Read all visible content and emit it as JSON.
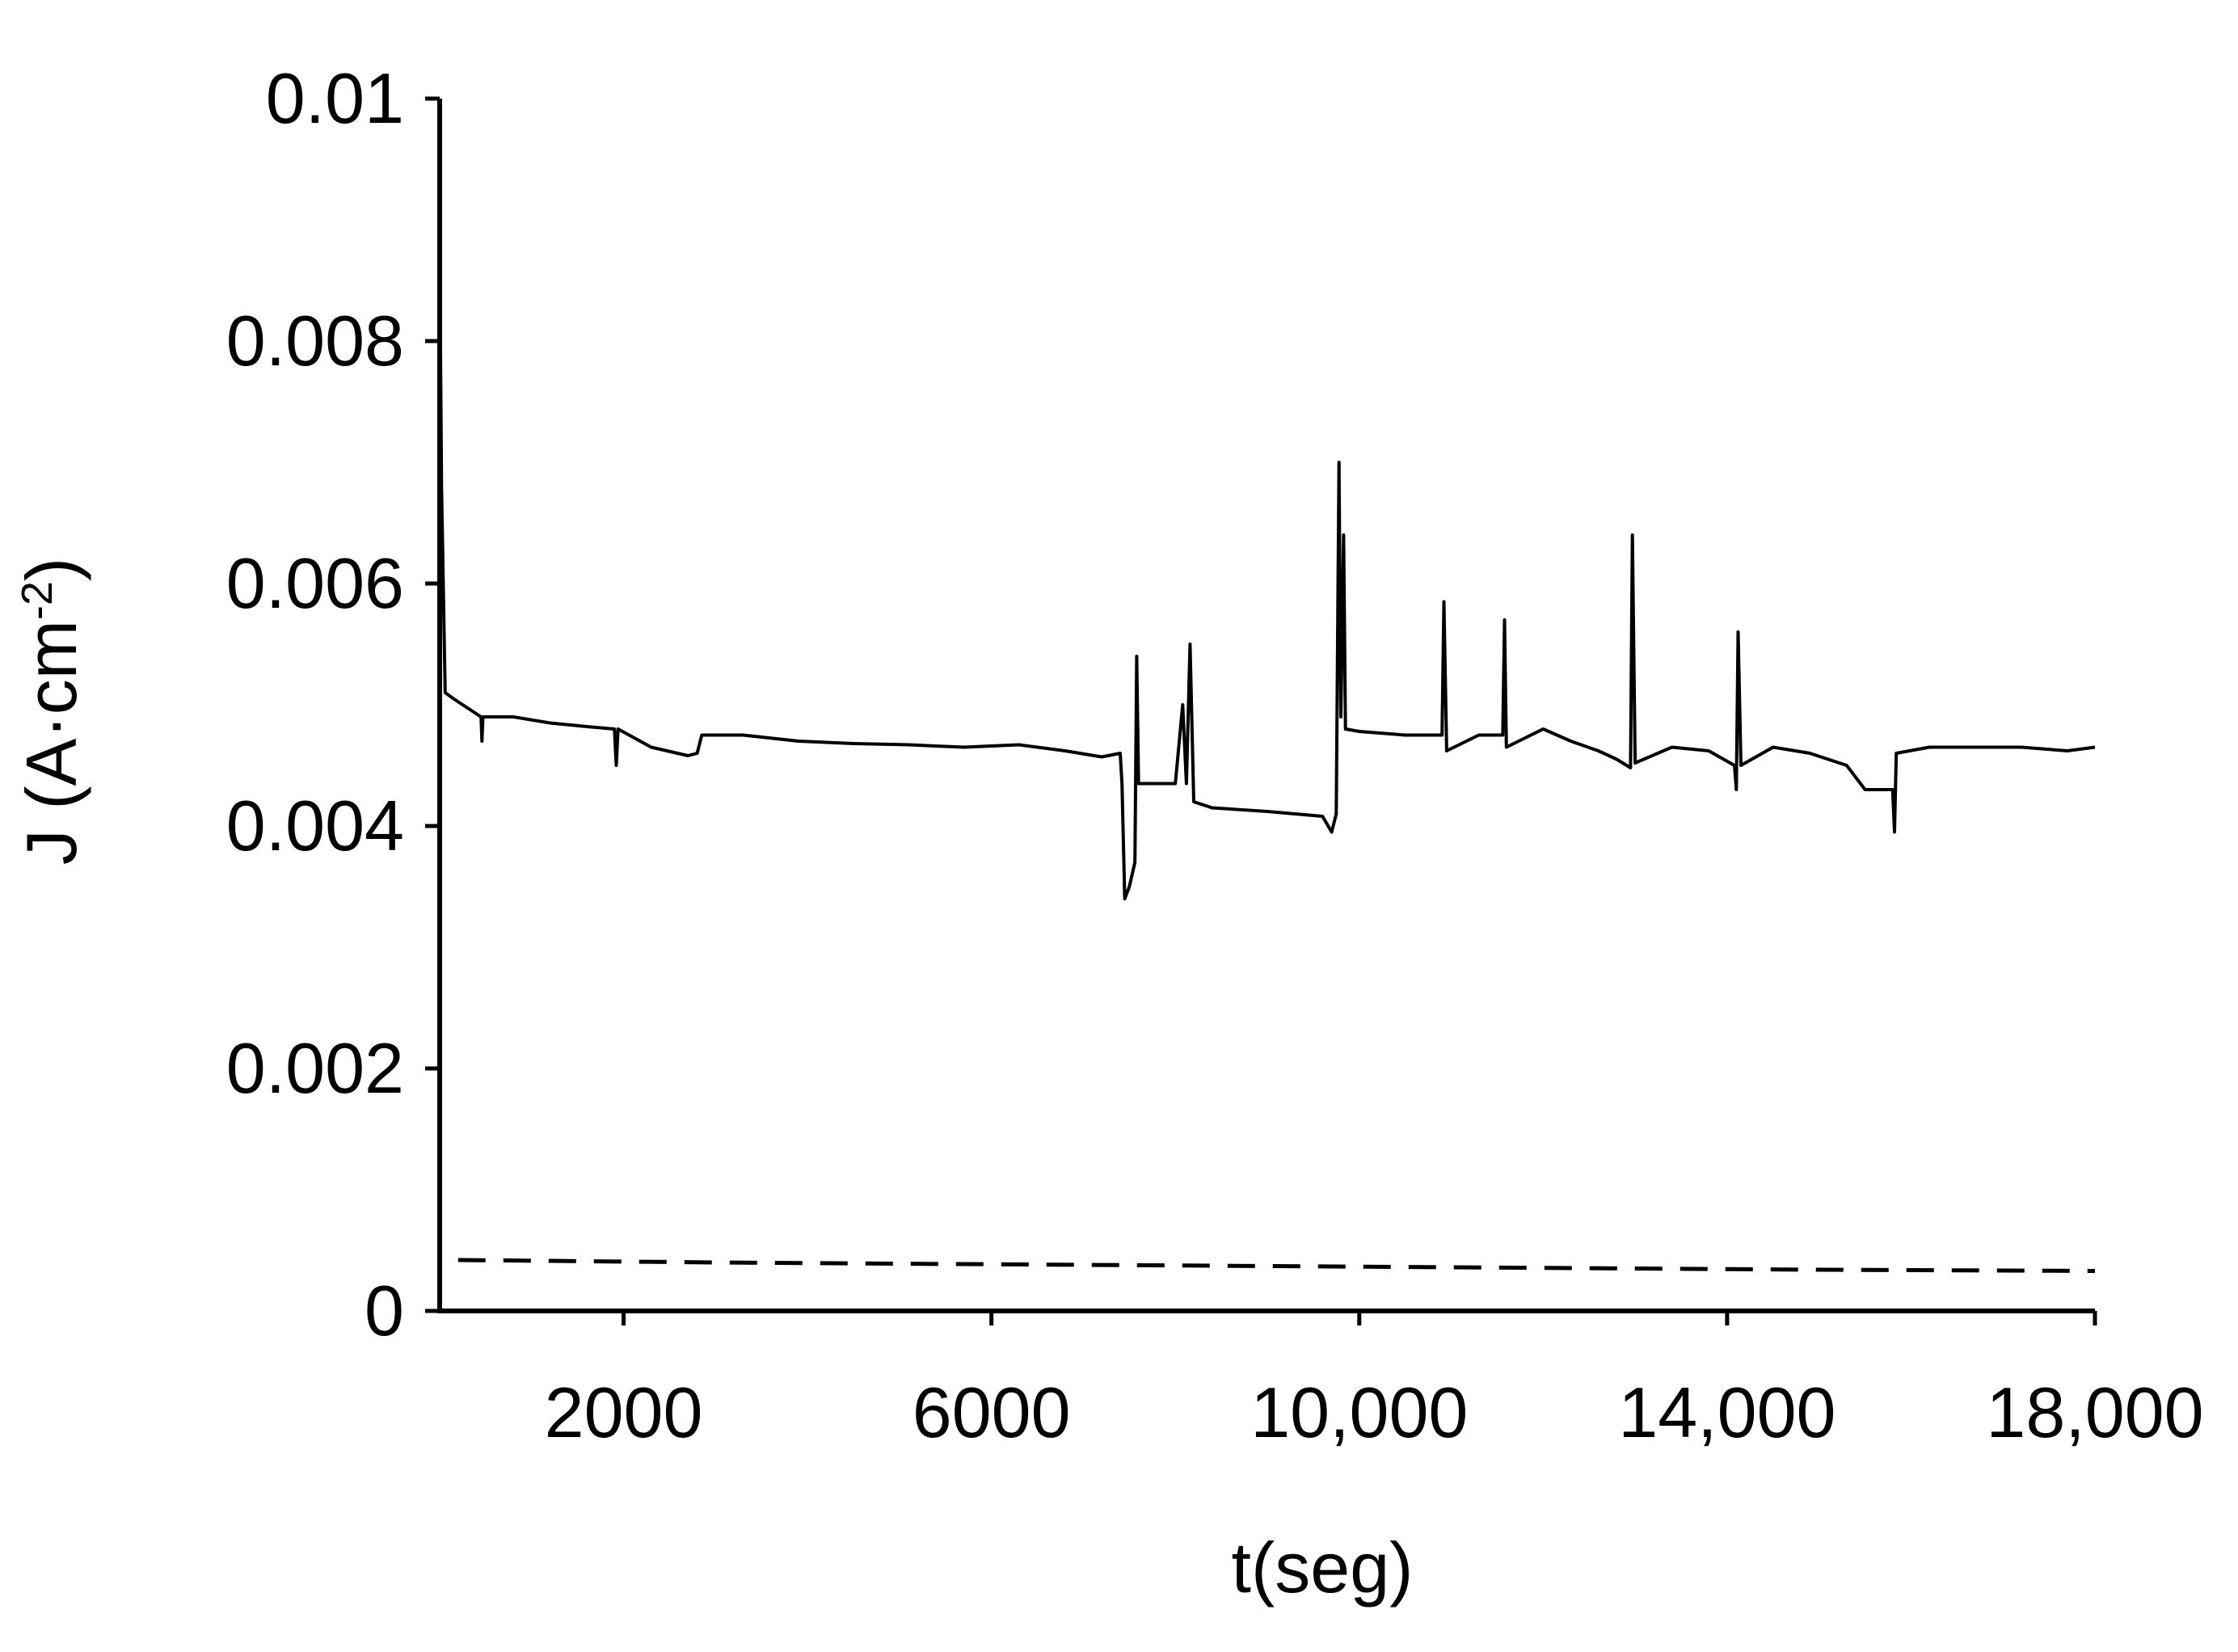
{
  "chart_data": {
    "type": "line",
    "xlabel": "t(seg)",
    "ylabel": {
      "base": "J (A·cm",
      "exponent": "-2",
      "close": ")"
    },
    "xlim": [
      0,
      18000
    ],
    "ylim": [
      0,
      0.01
    ],
    "x_ticks": [
      {
        "value": 2000,
        "label": "2000"
      },
      {
        "value": 6000,
        "label": "6000"
      },
      {
        "value": 10000,
        "label": "10,000"
      },
      {
        "value": 14000,
        "label": "14,000"
      },
      {
        "value": 18000,
        "label": "18,000"
      }
    ],
    "y_ticks": [
      {
        "value": 0,
        "label": "0"
      },
      {
        "value": 0.002,
        "label": "0.002"
      },
      {
        "value": 0.004,
        "label": "0.004"
      },
      {
        "value": 0.006,
        "label": "0.006"
      },
      {
        "value": 0.008,
        "label": "0.008"
      },
      {
        "value": 0.01,
        "label": "0.01"
      }
    ],
    "grid": false,
    "series": [
      {
        "style": "solid",
        "color": "#000000",
        "points": [
          [
            0,
            0.0088
          ],
          [
            20,
            0.0068
          ],
          [
            60,
            0.0051
          ],
          [
            150,
            0.00505
          ],
          [
            450,
            0.0049
          ],
          [
            460,
            0.0047
          ],
          [
            470,
            0.0049
          ],
          [
            800,
            0.0049
          ],
          [
            1200,
            0.00485
          ],
          [
            1600,
            0.00482
          ],
          [
            1900,
            0.0048
          ],
          [
            1920,
            0.0045
          ],
          [
            1940,
            0.0048
          ],
          [
            2300,
            0.00465
          ],
          [
            2700,
            0.00458
          ],
          [
            2800,
            0.0046
          ],
          [
            2850,
            0.00475
          ],
          [
            3300,
            0.00475
          ],
          [
            3900,
            0.0047
          ],
          [
            4500,
            0.00468
          ],
          [
            5100,
            0.00467
          ],
          [
            5700,
            0.00465
          ],
          [
            6300,
            0.00467
          ],
          [
            6800,
            0.00462
          ],
          [
            7200,
            0.00457
          ],
          [
            7400,
            0.0046
          ],
          [
            7420,
            0.00435
          ],
          [
            7450,
            0.0034
          ],
          [
            7500,
            0.0035
          ],
          [
            7560,
            0.0037
          ],
          [
            7580,
            0.0054
          ],
          [
            7600,
            0.00435
          ],
          [
            8000,
            0.00435
          ],
          [
            8080,
            0.005
          ],
          [
            8120,
            0.00435
          ],
          [
            8160,
            0.0055
          ],
          [
            8200,
            0.0042
          ],
          [
            8400,
            0.00415
          ],
          [
            9000,
            0.00412
          ],
          [
            9600,
            0.00408
          ],
          [
            9700,
            0.00395
          ],
          [
            9750,
            0.0041
          ],
          [
            9780,
            0.007
          ],
          [
            9800,
            0.0049
          ],
          [
            9830,
            0.0064
          ],
          [
            9850,
            0.0048
          ],
          [
            10000,
            0.00478
          ],
          [
            10500,
            0.00475
          ],
          [
            10900,
            0.00475
          ],
          [
            10920,
            0.00585
          ],
          [
            10950,
            0.00462
          ],
          [
            11300,
            0.00475
          ],
          [
            11560,
            0.00475
          ],
          [
            11580,
            0.0057
          ],
          [
            11600,
            0.00465
          ],
          [
            12000,
            0.0048
          ],
          [
            12300,
            0.0047
          ],
          [
            12600,
            0.00462
          ],
          [
            12800,
            0.00455
          ],
          [
            12950,
            0.00448
          ],
          [
            12970,
            0.0064
          ],
          [
            13000,
            0.00452
          ],
          [
            13400,
            0.00465
          ],
          [
            13800,
            0.00462
          ],
          [
            14080,
            0.0045
          ],
          [
            14100,
            0.0043
          ],
          [
            14120,
            0.0056
          ],
          [
            14150,
            0.0045
          ],
          [
            14500,
            0.00465
          ],
          [
            14900,
            0.0046
          ],
          [
            15300,
            0.0045
          ],
          [
            15500,
            0.0043
          ],
          [
            15800,
            0.0043
          ],
          [
            15820,
            0.00395
          ],
          [
            15840,
            0.0046
          ],
          [
            16200,
            0.00465
          ],
          [
            16700,
            0.00465
          ],
          [
            17200,
            0.00465
          ],
          [
            17700,
            0.00462
          ],
          [
            18000,
            0.00465
          ]
        ]
      },
      {
        "style": "dashed",
        "color": "#000000",
        "points": [
          [
            200,
            0.00042
          ],
          [
            3000,
            0.0004
          ],
          [
            7000,
            0.00038
          ],
          [
            11000,
            0.00036
          ],
          [
            15000,
            0.00034
          ],
          [
            18000,
            0.00033
          ]
        ]
      }
    ]
  }
}
